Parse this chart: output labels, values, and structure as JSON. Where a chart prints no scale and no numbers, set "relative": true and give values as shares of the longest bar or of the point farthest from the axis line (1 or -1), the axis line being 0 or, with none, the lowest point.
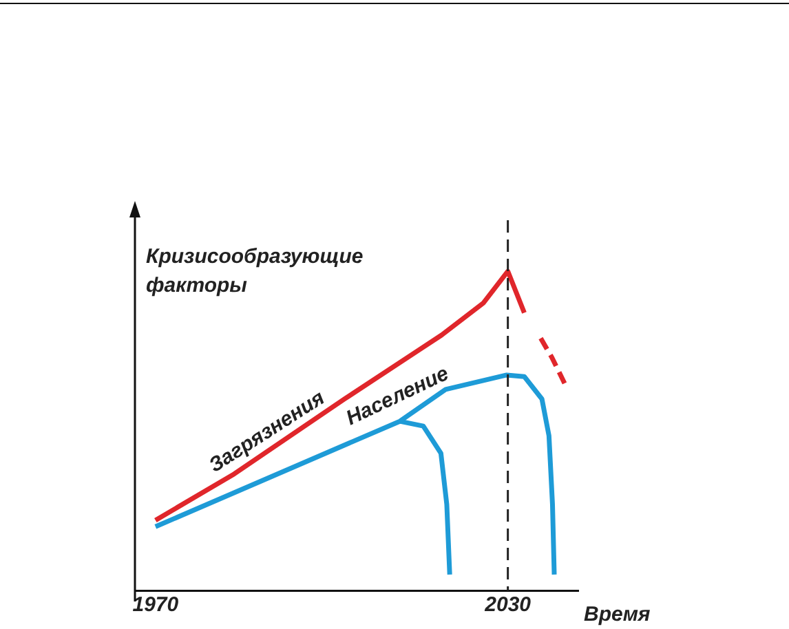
{
  "chart_data": {
    "type": "line",
    "relative": true,
    "xlabel": "Время",
    "ylabel": "Кризисообразующие факторы",
    "xlim": [
      1966.5,
      2042
    ],
    "xticks": [
      1970,
      2030
    ],
    "legend": false,
    "grid": false,
    "marker": "none",
    "series": [
      {
        "name": "Загрязнения",
        "color": "#e0262b",
        "x": [
          1970,
          1983.4,
          2002.2,
          2018.7,
          2025.8,
          2030,
          2032.8
        ],
        "values": [
          0.22,
          0.365,
          0.6,
          0.8,
          0.9,
          1,
          0.87
        ]
      },
      {
        "color": "#e0262b",
        "line_style": "dashed",
        "x": [
          2035.6,
          2037.5,
          2039.9
        ],
        "values": [
          0.79,
          0.73,
          0.64
        ]
      },
      {
        "name": "Население",
        "color": "#1e9bd7",
        "x": [
          1970,
          2011.6,
          2019.4,
          2029.8,
          2032.8,
          2035.8,
          2037,
          2037.6,
          2037.9
        ],
        "values": [
          0.2,
          0.53,
          0.63,
          0.675,
          0.67,
          0.6,
          0.485,
          0.27,
          0.05
        ]
      },
      {
        "color": "#1e9bd7",
        "x": [
          2011.6,
          2015.6,
          2018.6,
          2019.6,
          2020.1
        ],
        "values": [
          0.53,
          0.515,
          0.43,
          0.27,
          0.05
        ]
      }
    ],
    "ref_lines": [
      {
        "axis": "x",
        "value": 2030,
        "color": "#222222",
        "line_style": "dashed"
      }
    ]
  }
}
